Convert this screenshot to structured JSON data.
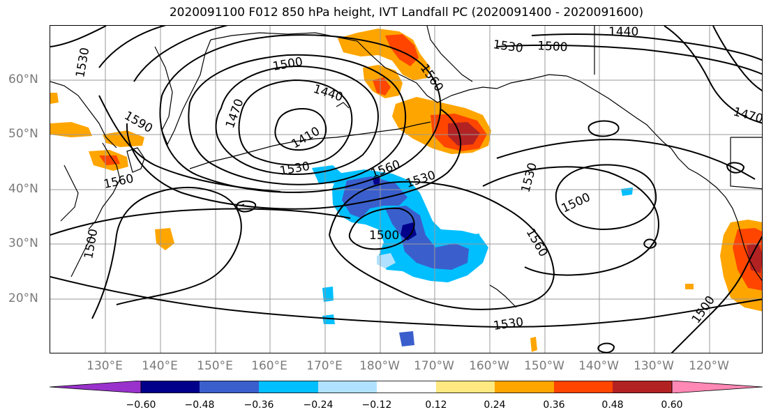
{
  "title": "2020091100 F012 850 hPa height, IVT Landfall PC (2020091400 - 2020091600)",
  "lon_labels": [
    "130°E",
    "140°E",
    "150°E",
    "160°E",
    "170°E",
    "180°W",
    "170°W",
    "160°W",
    "150°W",
    "140°W",
    "130°W",
    "120°W"
  ],
  "lat_labels": [
    "60°N",
    "50°N",
    "40°N",
    "30°N",
    "20°N"
  ],
  "contour_labels": [
    "1410",
    "1440",
    "1470",
    "1500",
    "1530",
    "1560",
    "1590"
  ],
  "colorbar": {
    "ticks": [
      "−0.60",
      "−0.48",
      "−0.36",
      "−0.24",
      "−0.12",
      "0.12",
      "0.24",
      "0.36",
      "0.48",
      "0.60"
    ],
    "colors": [
      "#9932cc",
      "#00008b",
      "#3a5fcd",
      "#00bfff",
      "#b0e2ff",
      "#ffffff",
      "#ffe980",
      "#ffa500",
      "#ff4500",
      "#b22222",
      "#ff88b4"
    ]
  },
  "colors": {
    "land_outline": "#000000",
    "grid": "#999999",
    "tick_label": "#7a7a7a"
  }
}
